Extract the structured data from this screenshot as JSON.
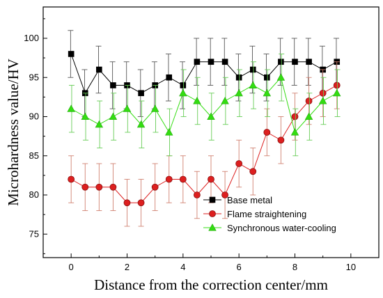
{
  "chart_data": {
    "type": "line",
    "title": "",
    "xlabel": "Distance from the correction center/mm",
    "ylabel": "Microhardness value/HV",
    "xlim": [
      -1,
      11
    ],
    "ylim": [
      72,
      104
    ],
    "xticks": [
      0,
      2,
      4,
      6,
      8,
      10
    ],
    "yticks": [
      75,
      80,
      85,
      90,
      95,
      100
    ],
    "legend_position": "bottom-right",
    "x": [
      0,
      0.5,
      1,
      1.5,
      2,
      2.5,
      3,
      3.5,
      4,
      4.5,
      5,
      5.5,
      6,
      6.5,
      7,
      7.5,
      8,
      8.5,
      9,
      9.5
    ],
    "series": [
      {
        "name": "Base metal",
        "color": "#000000",
        "marker": "square",
        "values": [
          98,
          93,
          96,
          94,
          94,
          93,
          94,
          95,
          94,
          97,
          97,
          97,
          95,
          96,
          95,
          97,
          97,
          97,
          96,
          97
        ],
        "error": [
          3,
          3,
          3,
          3,
          3,
          3,
          3,
          3,
          3,
          3,
          3,
          3,
          3,
          3,
          3,
          3,
          3,
          3,
          3,
          3
        ]
      },
      {
        "name": "Flame straightening",
        "color": "#dd1f1f",
        "marker": "circle",
        "values": [
          82,
          81,
          81,
          81,
          79,
          79,
          81,
          82,
          82,
          80,
          82,
          80,
          84,
          83,
          88,
          87,
          90,
          92,
          93,
          94
        ],
        "error": [
          3,
          3,
          3,
          3,
          3,
          3,
          3,
          3,
          3,
          3,
          3,
          3,
          3,
          3,
          3,
          3,
          3,
          3,
          3,
          3
        ]
      },
      {
        "name": "Synchronous water-cooling",
        "color": "#33dd11",
        "marker": "triangle",
        "values": [
          91,
          90,
          89,
          90,
          91,
          89,
          91,
          88,
          93,
          92,
          90,
          92,
          93,
          94,
          93,
          95,
          88,
          90,
          92,
          93
        ],
        "error": [
          3,
          3,
          3,
          3,
          3,
          3,
          3,
          3,
          3,
          3,
          3,
          3,
          3,
          3,
          3,
          3,
          3,
          3,
          3,
          3
        ]
      }
    ]
  }
}
